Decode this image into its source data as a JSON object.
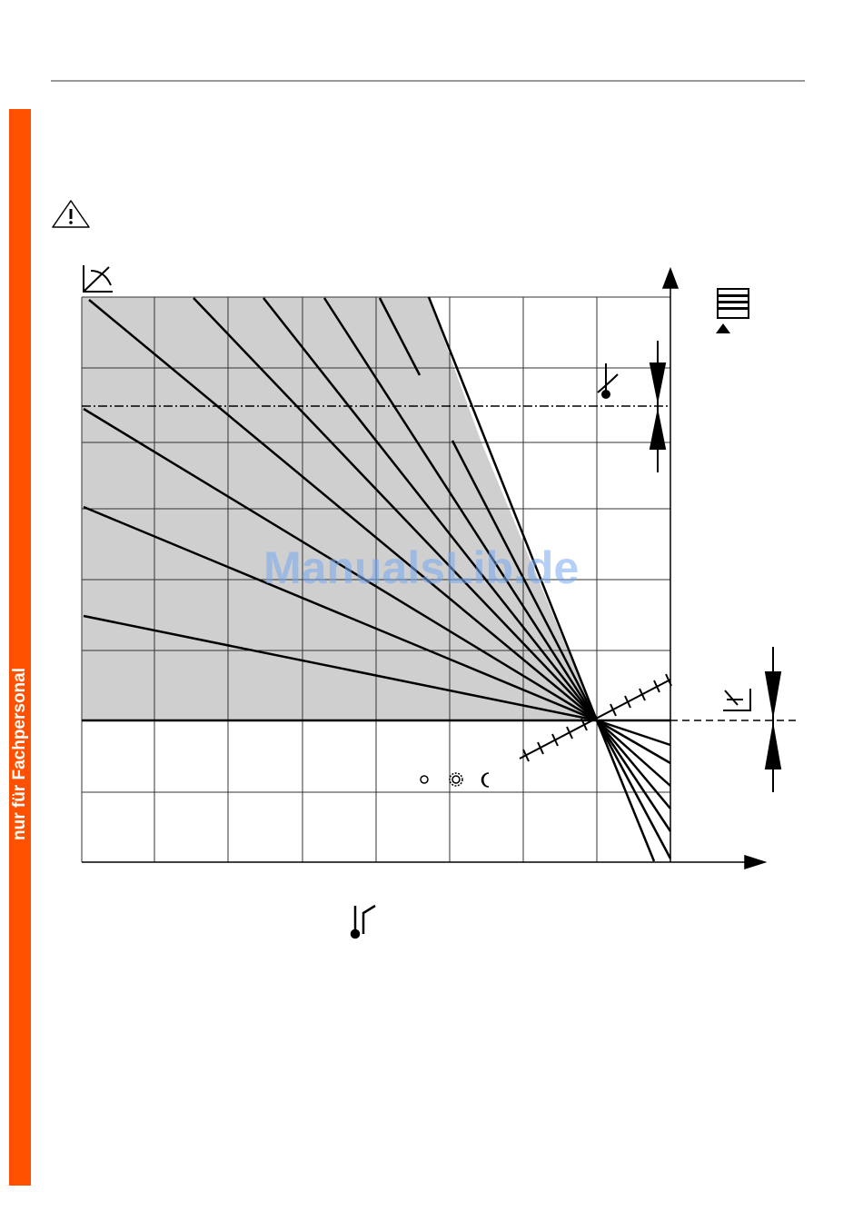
{
  "sidebar": {
    "label": "nur für Fachpersonal"
  },
  "watermark": "ManualsLib.de"
}
